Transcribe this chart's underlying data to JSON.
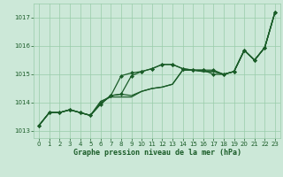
{
  "xlabel": "Graphe pression niveau de la mer (hPa)",
  "bg_color": "#cce8d8",
  "grid_color": "#99ccaa",
  "line_color": "#1a5c28",
  "ylim": [
    1012.75,
    1017.5
  ],
  "xlim": [
    -0.5,
    23.5
  ],
  "yticks": [
    1013,
    1014,
    1015,
    1016,
    1017
  ],
  "xticks": [
    0,
    1,
    2,
    3,
    4,
    5,
    6,
    7,
    8,
    9,
    10,
    11,
    12,
    13,
    14,
    15,
    16,
    17,
    18,
    19,
    20,
    21,
    22,
    23
  ],
  "series": [
    {
      "y": [
        1013.2,
        1013.65,
        1013.65,
        1013.75,
        1013.65,
        1013.55,
        1014.05,
        1014.2,
        1014.2,
        1014.2,
        1014.4,
        1014.5,
        1014.55,
        1014.65,
        1015.15,
        1015.15,
        1015.1,
        1015.1,
        1015.0,
        1015.1,
        1015.85,
        1015.5,
        1015.95,
        1017.2
      ],
      "markers": false,
      "lw": 0.9
    },
    {
      "y": [
        1013.2,
        1013.65,
        1013.65,
        1013.75,
        1013.65,
        1013.55,
        1014.0,
        1014.25,
        1014.3,
        1014.95,
        1015.1,
        1015.2,
        1015.35,
        1015.35,
        1015.2,
        1015.15,
        1015.15,
        1015.15,
        1015.0,
        1015.1,
        1015.85,
        1015.5,
        1015.95,
        1017.2
      ],
      "markers": true,
      "lw": 0.9
    },
    {
      "y": [
        1013.2,
        1013.65,
        1013.65,
        1013.75,
        1013.65,
        1013.55,
        1013.95,
        1014.25,
        1014.95,
        1015.05,
        1015.1,
        1015.2,
        1015.35,
        1015.35,
        1015.2,
        1015.15,
        1015.15,
        1015.0,
        1015.0,
        1015.1,
        1015.85,
        1015.5,
        1015.95,
        1017.2
      ],
      "markers": true,
      "lw": 0.9
    },
    {
      "y": [
        1013.2,
        1013.65,
        1013.65,
        1013.75,
        1013.65,
        1013.55,
        1013.95,
        1014.25,
        1014.3,
        1014.25,
        1014.4,
        1014.5,
        1014.55,
        1014.65,
        1015.15,
        1015.15,
        1015.1,
        1015.1,
        1015.0,
        1015.1,
        1015.85,
        1015.5,
        1015.95,
        1017.2
      ],
      "markers": false,
      "lw": 0.9
    }
  ]
}
